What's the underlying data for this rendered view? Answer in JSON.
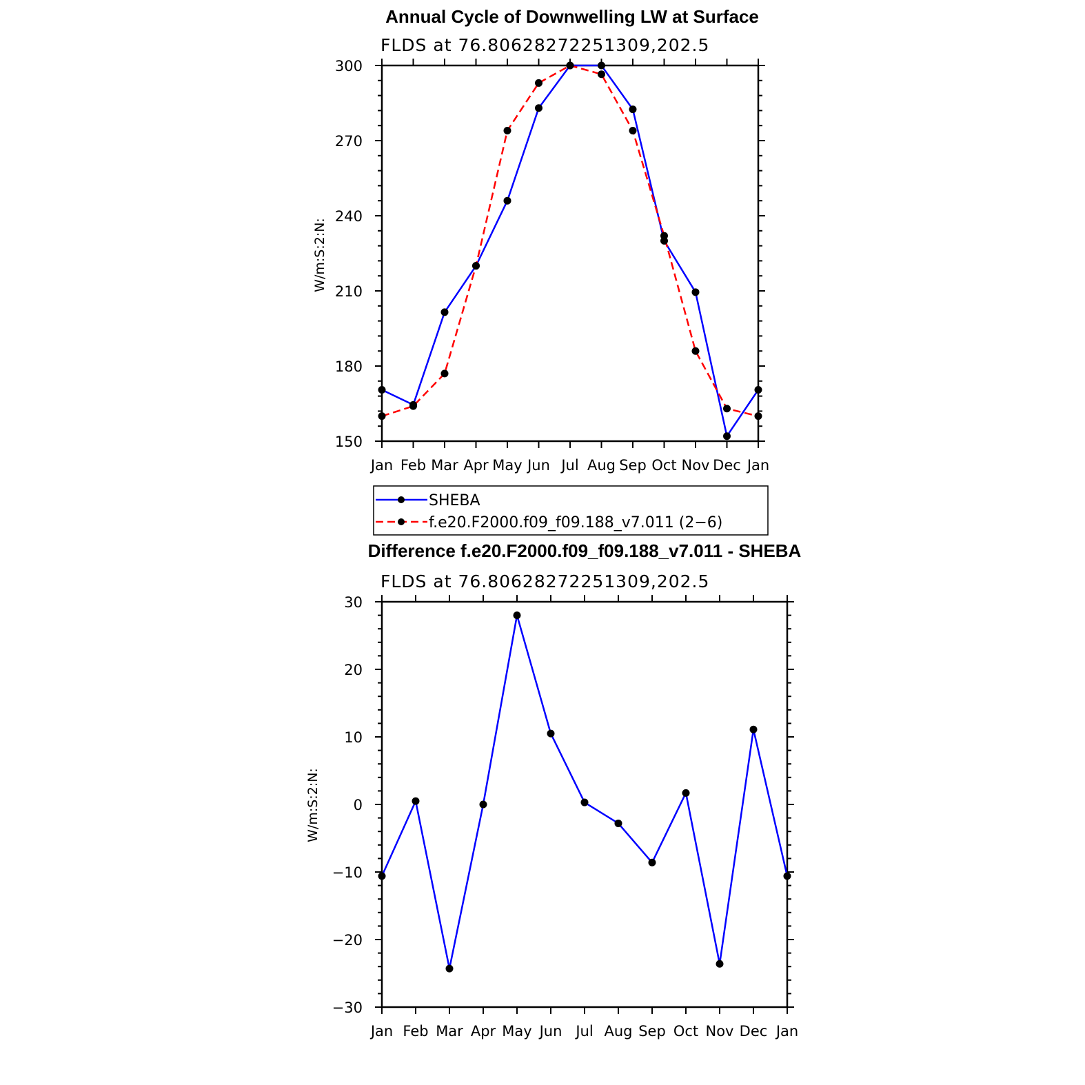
{
  "chart_data": [
    {
      "type": "line",
      "title": "Annual Cycle of Downwelling LW at Surface",
      "subtitle": "FLDS at 76.80628272251309,202.5",
      "ylabel": "W/m:S:2:N:",
      "xlabel": "",
      "categories": [
        "Jan",
        "Feb",
        "Mar",
        "Apr",
        "May",
        "Jun",
        "Jul",
        "Aug",
        "Sep",
        "Oct",
        "Nov",
        "Dec",
        "Jan"
      ],
      "ylim": [
        150,
        300
      ],
      "yticks": [
        150,
        180,
        210,
        240,
        270,
        300
      ],
      "ytick_labels": [
        "150",
        "180",
        "210",
        "240",
        "270",
        "300"
      ],
      "grid": false,
      "legend_position": "bottom",
      "series": [
        {
          "name": "SHEBA",
          "color": "#0000ff",
          "style": "solid",
          "values": [
            170.5,
            164.5,
            201.5,
            220,
            246,
            283,
            300,
            300,
            282.5,
            230,
            209.5,
            152,
            170.5
          ]
        },
        {
          "name": "f.e20.F2000.f09_f09.188_v7.011 (2−6)",
          "color": "#ff0000",
          "style": "dashed",
          "values": [
            160,
            164,
            177,
            220,
            274,
            293,
            300,
            296.5,
            274,
            232,
            186,
            163,
            160
          ]
        }
      ]
    },
    {
      "type": "line",
      "title": "Difference f.e20.F2000.f09_f09.188_v7.011 - SHEBA",
      "subtitle": "FLDS at 76.80628272251309,202.5",
      "ylabel": "W/m:S:2:N:",
      "xlabel": "",
      "categories": [
        "Jan",
        "Feb",
        "Mar",
        "Apr",
        "May",
        "Jun",
        "Jul",
        "Aug",
        "Sep",
        "Oct",
        "Nov",
        "Dec",
        "Jan"
      ],
      "ylim": [
        -30,
        30
      ],
      "yticks": [
        -30,
        -20,
        -10,
        0,
        10,
        20,
        30
      ],
      "ytick_labels": [
        "−30",
        "−20",
        "−10",
        "0",
        "10",
        "20",
        "30"
      ],
      "grid": false,
      "series": [
        {
          "color": "#0000ff",
          "style": "solid",
          "values": [
            -10.6,
            0.5,
            -24.3,
            0,
            28,
            10.5,
            0.3,
            -2.8,
            -8.6,
            1.7,
            -23.6,
            11.1,
            -10.6
          ]
        }
      ]
    }
  ]
}
